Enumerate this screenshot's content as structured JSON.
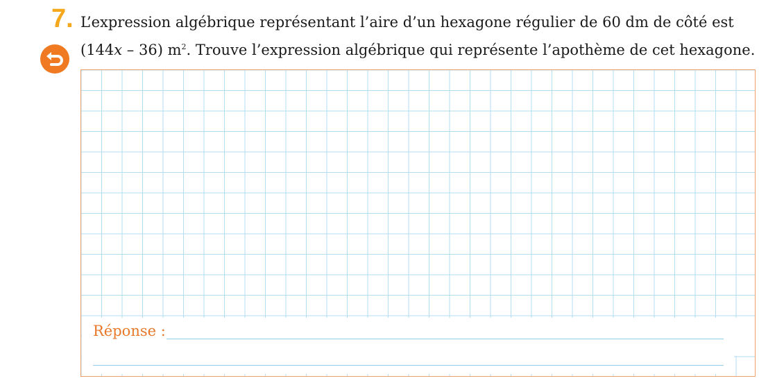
{
  "exercise": {
    "number": "7.",
    "text_part1": "L’expression algébrique représentant l’aire d’un hexagone régulier de 60 dm de côté est (144",
    "variable": "x",
    "text_part2": " – 36) m",
    "exponent": "2",
    "text_part3": ". Trouve l’expression algébrique qui représente l’apothème de cet hexagone."
  },
  "answer": {
    "label": "Réponse :"
  },
  "icons": {
    "back": "back-arrow-icon"
  },
  "colors": {
    "number": "#f5a81c",
    "icon_bg": "#f07a22",
    "answer_label": "#e8782a",
    "grid_line": "#b2def0",
    "border": "#f0a06a"
  }
}
